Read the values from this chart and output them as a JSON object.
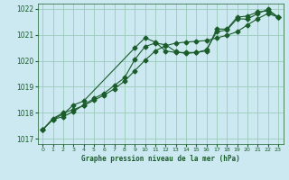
{
  "title": "Graphe pression niveau de la mer (hPa)",
  "background_color": "#cce8f0",
  "grid_color": "#99ccbb",
  "line_color": "#1a5c2a",
  "xlim": [
    -0.5,
    23.5
  ],
  "ylim": [
    1016.8,
    1022.2
  ],
  "yticks": [
    1017,
    1018,
    1019,
    1020,
    1021,
    1022
  ],
  "xticks": [
    0,
    1,
    2,
    3,
    4,
    5,
    6,
    7,
    8,
    9,
    10,
    11,
    12,
    13,
    14,
    15,
    16,
    17,
    18,
    19,
    20,
    21,
    22,
    23
  ],
  "series1_x": [
    0,
    1,
    2,
    3,
    4,
    5,
    6,
    7,
    8,
    9,
    10,
    11,
    12,
    13,
    14,
    15,
    16,
    17,
    18,
    19,
    20,
    21,
    22,
    23
  ],
  "series1_y": [
    1017.35,
    1017.75,
    1017.85,
    1018.05,
    1018.3,
    1018.55,
    1018.75,
    1019.05,
    1019.35,
    1020.05,
    1020.55,
    1020.68,
    1020.62,
    1020.35,
    1020.28,
    1020.32,
    1020.42,
    1021.12,
    1021.18,
    1021.62,
    1021.6,
    1021.82,
    1021.98,
    1021.68
  ],
  "series2_x": [
    0,
    1,
    2,
    3,
    4,
    9,
    10,
    11,
    12,
    13,
    14,
    15,
    16,
    17,
    18,
    19,
    20,
    21,
    22,
    23
  ],
  "series2_y": [
    1017.35,
    1017.75,
    1017.95,
    1018.3,
    1018.45,
    1020.5,
    1020.88,
    1020.72,
    1020.38,
    1020.32,
    1020.32,
    1020.32,
    1020.38,
    1021.22,
    1021.22,
    1021.68,
    1021.72,
    1021.88,
    1021.92,
    1021.68
  ],
  "series3_x": [
    0,
    1,
    2,
    3,
    4,
    5,
    6,
    7,
    8,
    9,
    10,
    11,
    12,
    13,
    14,
    15,
    16,
    17,
    18,
    19,
    20,
    21,
    22,
    23
  ],
  "series3_y": [
    1017.35,
    1017.78,
    1018.0,
    1018.12,
    1018.28,
    1018.48,
    1018.68,
    1018.92,
    1019.22,
    1019.62,
    1020.02,
    1020.38,
    1020.58,
    1020.68,
    1020.72,
    1020.75,
    1020.78,
    1020.88,
    1020.98,
    1021.12,
    1021.38,
    1021.62,
    1021.82,
    1021.68
  ]
}
